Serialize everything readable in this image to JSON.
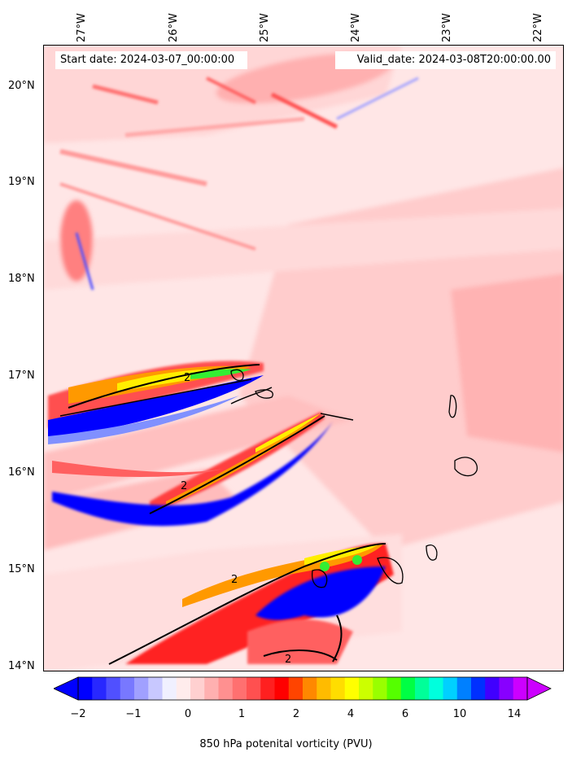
{
  "header": {
    "start_date": "Start date: 2024-03-07_00:00:00",
    "valid_date": "Valid_date: 2024-03-08T20:00:00.00"
  },
  "map": {
    "lon_labels": [
      "27°W",
      "26°W",
      "25°W",
      "24°W",
      "23°W",
      "22°W"
    ],
    "lat_labels": [
      "20°N",
      "19°N",
      "18°N",
      "17°N",
      "16°N",
      "15°N",
      "14°N"
    ],
    "contour_label": "2",
    "colors": {
      "background": "#ffe6e6",
      "light_pink": "#ffcccc",
      "pink": "#ffb3b3",
      "red": "#ff4040",
      "deep_red": "#ff0000",
      "orange": "#ff9900",
      "yellow": "#ffee00",
      "green": "#33ee33",
      "blue": "#0000ff",
      "light_blue": "#aab4ff",
      "coastline": "#000000"
    }
  },
  "colorbar": {
    "tick_labels": [
      "−2",
      "−1",
      "0",
      "1",
      "2",
      "4",
      "6",
      "10",
      "14"
    ],
    "label": "850 hPa potenital vorticity (PVU)",
    "colors": [
      "#0000ff",
      "#2828ff",
      "#5050ff",
      "#7878ff",
      "#a0a0ff",
      "#c8c8ff",
      "#f0f0ff",
      "#ffecec",
      "#ffd0d0",
      "#ffb0b0",
      "#ff9090",
      "#ff7070",
      "#ff5050",
      "#ff2020",
      "#ff0000",
      "#ff4400",
      "#ff8800",
      "#ffbb00",
      "#ffdd00",
      "#ffff00",
      "#ccff00",
      "#99ff00",
      "#55ff00",
      "#00ff44",
      "#00ff99",
      "#00ffdd",
      "#00d0ff",
      "#0080ff",
      "#0030ff",
      "#4000ff",
      "#8800ff",
      "#cc00ff"
    ]
  }
}
